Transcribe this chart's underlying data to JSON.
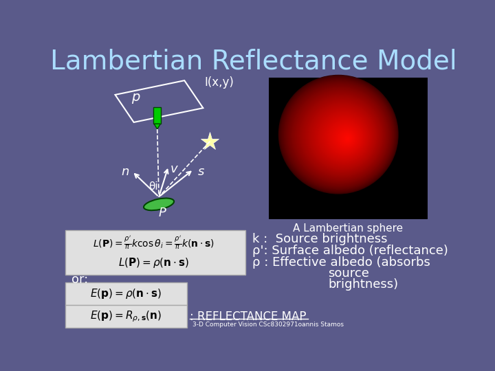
{
  "title": "Lambertian Reflectance Model",
  "bg_color": "#5a5a8a",
  "title_color": "#aaddff",
  "title_fontsize": 28,
  "diagram_label_p": "p",
  "diagram_label_Ixy": "I(x,y)",
  "diagram_label_n": "n",
  "diagram_label_thetai": "θi",
  "diagram_label_v": "v",
  "diagram_label_s": "s",
  "diagram_label_P": "P",
  "formula_box_color": "#d8d8d8",
  "formula_text_color": "#000000",
  "white": "#ffffff",
  "sphere_caption": "A Lambertian sphere",
  "k_desc": "k :  Source brightness",
  "rho_prime_desc": "ρ': Surface albedo (reflectance)",
  "rho_desc": "ρ : Effective albedo (absorbs",
  "source_brightness": "source",
  "brightness_paren": "brightness)",
  "or_label": "or:",
  "reflectance_map": ": REFLECTANCE MAP",
  "credit": "3-D Computer Vision CSc8302971oannis Stamos"
}
